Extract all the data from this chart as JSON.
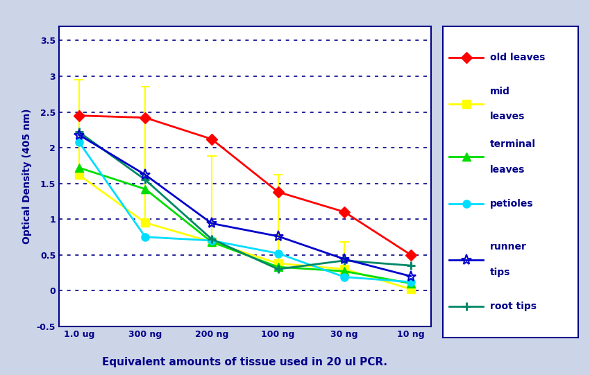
{
  "x_labels": [
    "1.0 ug",
    "300 ng",
    "200 ng",
    "100 ng",
    "30 ng",
    "10 ng"
  ],
  "x_positions": [
    0,
    1,
    2,
    3,
    4,
    5
  ],
  "series": [
    {
      "name": "old leaves",
      "values": [
        2.45,
        2.42,
        2.12,
        1.38,
        1.1,
        0.5
      ],
      "color": "#ff0000",
      "marker": "D",
      "markersize": 8,
      "linewidth": 2.0,
      "zorder": 5
    },
    {
      "name": "mid\nleaves",
      "values": [
        1.62,
        0.95,
        0.68,
        0.38,
        0.3,
        0.02
      ],
      "color": "#ffff00",
      "marker": "s",
      "markersize": 8,
      "linewidth": 2.0,
      "zorder": 4,
      "err_top": [
        2.95,
        2.85,
        1.88,
        1.62,
        0.68,
        0.12
      ]
    },
    {
      "name": "terminal\nleaves",
      "values": [
        1.72,
        1.42,
        0.68,
        0.33,
        0.27,
        0.1
      ],
      "color": "#00dd00",
      "marker": "^",
      "markersize": 8,
      "linewidth": 2.0,
      "zorder": 4
    },
    {
      "name": "petioles",
      "values": [
        2.08,
        0.75,
        0.7,
        0.52,
        0.19,
        0.12
      ],
      "color": "#00ddff",
      "marker": "o",
      "markersize": 8,
      "linewidth": 2.0,
      "zorder": 4
    },
    {
      "name": "runner\ntips",
      "values": [
        2.18,
        1.62,
        0.94,
        0.76,
        0.44,
        0.2
      ],
      "color": "#0000cc",
      "marker": "*",
      "markersize": 11,
      "linewidth": 2.0,
      "zorder": 5
    },
    {
      "name": "root tips",
      "values": [
        2.22,
        1.55,
        0.72,
        0.3,
        0.42,
        0.35
      ],
      "color": "#008866",
      "marker": "+",
      "markersize": 9,
      "linewidth": 2.0,
      "zorder": 4
    }
  ],
  "ylabel": "Optical Density (405 nm)",
  "xlabel": "Equivalent amounts of tissue used in 20 ul PCR.",
  "ylim": [
    -0.5,
    3.7
  ],
  "yticks": [
    -0.5,
    0.0,
    0.5,
    1.0,
    1.5,
    2.0,
    2.5,
    3.0,
    3.5
  ],
  "ytick_labels": [
    "-0.5",
    "0",
    "0.5",
    "1",
    "1.5",
    "2",
    "2.5",
    "3",
    "3.5"
  ],
  "outer_bg": "#ccd4e8",
  "plot_bg": "#ffffff",
  "grid_color": "#000088",
  "text_color": "#000088",
  "xlabel_fontsize": 11,
  "ylabel_fontsize": 10,
  "tick_fontsize": 9,
  "legend_fontsize": 10
}
